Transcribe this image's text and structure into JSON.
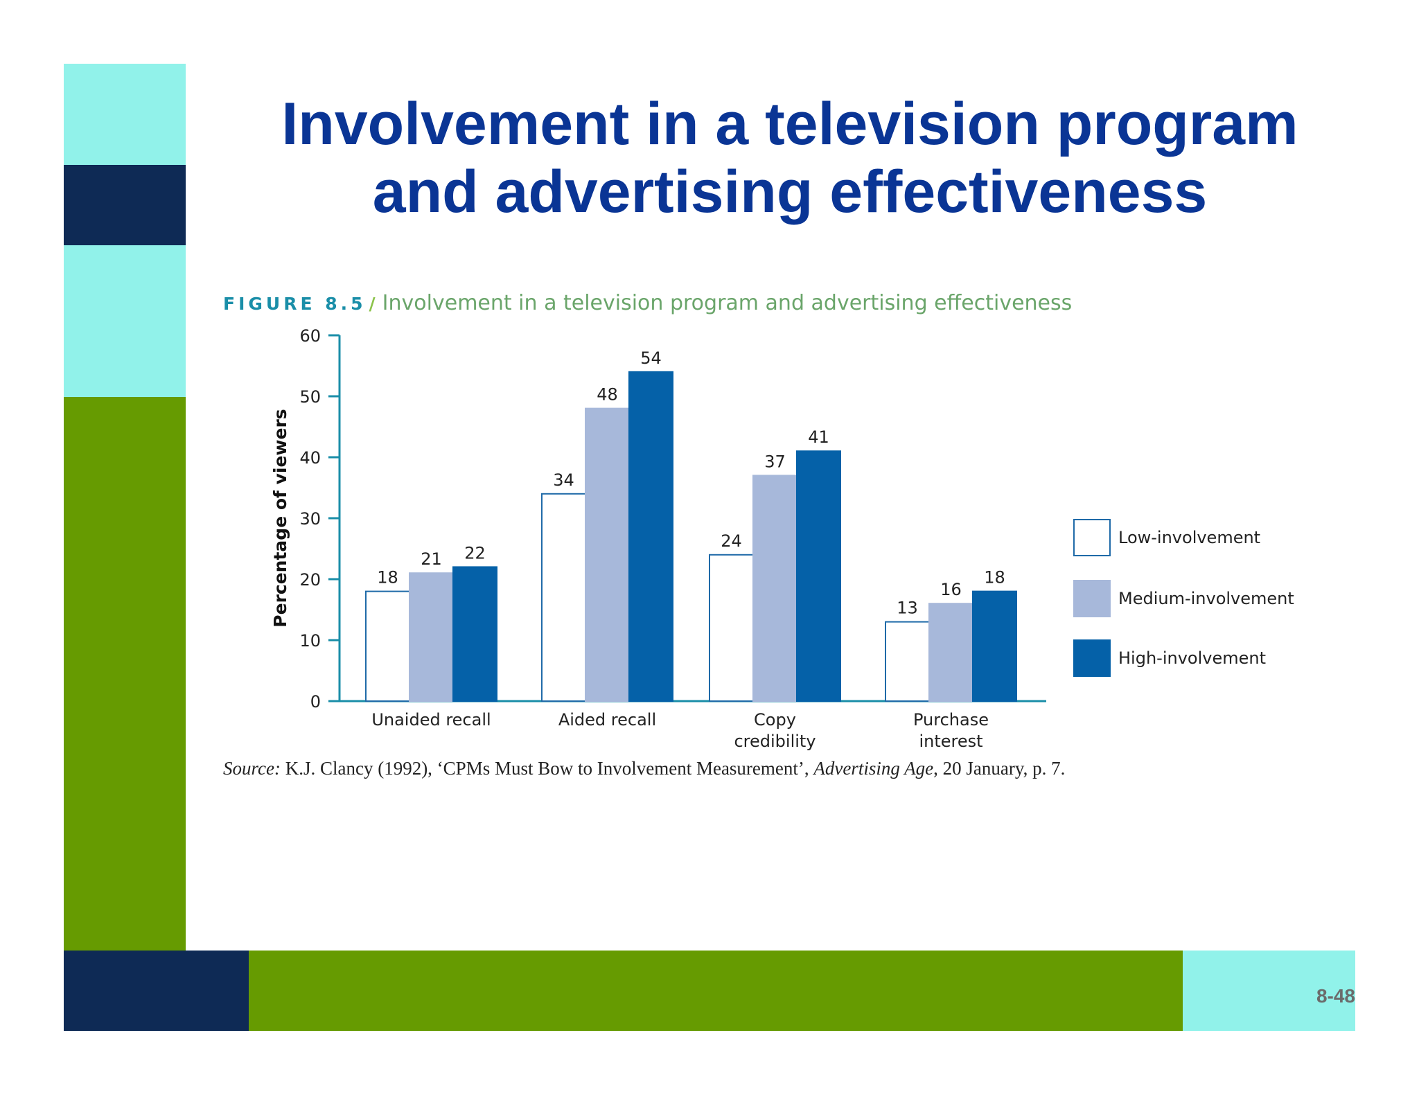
{
  "slide": {
    "title": "Involvement in a television program and advertising effectiveness",
    "page_number": "8-48",
    "colors": {
      "cyan": "#91f2ea",
      "navy": "#0e2a55",
      "green": "#669b01",
      "title": "#0a3595"
    }
  },
  "figure": {
    "label": "FIGURE 8.5",
    "separator": "/",
    "caption": "Involvement in a television program and advertising effectiveness",
    "source_prefix": "Source:",
    "source_text": " K.J. Clancy (1992), ‘CPMs Must Bow to Involvement Measurement’, ",
    "source_publication": "Advertising Age",
    "source_suffix": ", 20 January, p. 7."
  },
  "chart_data": {
    "type": "bar",
    "title": "Involvement in a television program and advertising effectiveness",
    "xlabel": "",
    "ylabel": "Percentage of viewers",
    "ylim": [
      0,
      60
    ],
    "yticks": [
      0,
      10,
      20,
      30,
      40,
      50,
      60
    ],
    "categories": [
      [
        "Unaided recall"
      ],
      [
        "Aided recall"
      ],
      [
        "Copy",
        "credibility"
      ],
      [
        "Purchase",
        "interest"
      ]
    ],
    "series": [
      {
        "name": "Low-involvement",
        "values": [
          18,
          34,
          24,
          13
        ],
        "color": "#ffffff",
        "stroke": "#1f6aa8"
      },
      {
        "name": "Medium-involvement",
        "values": [
          21,
          48,
          37,
          16
        ],
        "color": "#a7b8da",
        "stroke": "#a7b8da"
      },
      {
        "name": "High-involvement",
        "values": [
          22,
          54,
          41,
          18
        ],
        "color": "#0561a8",
        "stroke": "#0561a8"
      }
    ],
    "legend_position": "right",
    "grid": false
  }
}
